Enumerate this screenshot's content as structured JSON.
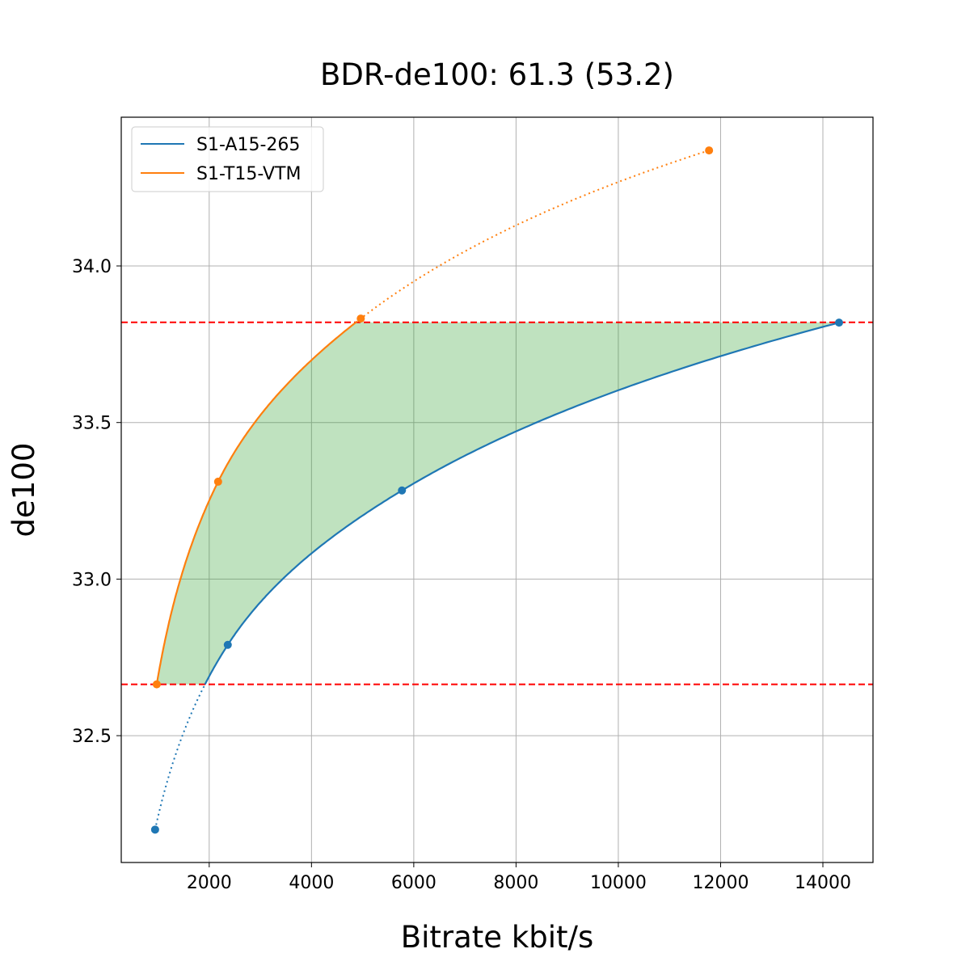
{
  "chart_data": {
    "type": "line",
    "title": "BDR-de100: 61.3 (53.2)",
    "xlabel": "Bitrate kbit/s",
    "ylabel": "de100",
    "xlim": [
      280,
      14980
    ],
    "ylim": [
      32.095,
      34.475
    ],
    "xticks": [
      2000,
      4000,
      6000,
      8000,
      10000,
      12000,
      14000
    ],
    "yticks": [
      32.5,
      33.0,
      33.5,
      34.0
    ],
    "xtick_labels": [
      "2000",
      "4000",
      "6000",
      "8000",
      "10000",
      "12000",
      "14000"
    ],
    "ytick_labels": [
      "32.5",
      "33.0",
      "33.5",
      "34.0"
    ],
    "grid": true,
    "legend_placement": "top-left",
    "series": [
      {
        "name": "S1-A15-265",
        "color": "#1f77b4",
        "x": [
          942,
          2363,
          5769,
          14316
        ],
        "y": [
          32.2,
          32.79,
          33.283,
          33.819
        ]
      },
      {
        "name": "S1-T15-VTM",
        "color": "#ff7f0e",
        "x": [
          974,
          2174,
          4964,
          11774
        ],
        "y": [
          32.664,
          33.311,
          33.832,
          34.369
        ]
      }
    ],
    "reference_lines": {
      "y": [
        33.82,
        32.664
      ],
      "color": "#ff0000",
      "style": "dashed"
    },
    "fill_between": {
      "color": "#2ca02c",
      "opacity": 0.3,
      "y_range": [
        32.664,
        33.82
      ]
    }
  }
}
